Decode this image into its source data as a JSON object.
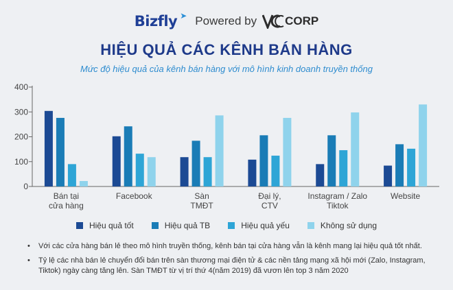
{
  "header": {
    "brand": "Bizfly",
    "powered_by": "Powered by",
    "partner": "CORP"
  },
  "chart_data": {
    "type": "bar",
    "title": "HIỆU QUẢ CÁC KÊNH BÁN HÀNG",
    "subtitle": "Mức độ hiệu quả của kênh bán hàng với mô hình kinh doanh truyền thống",
    "categories": [
      [
        "Bán tại",
        "cửa hàng"
      ],
      [
        "Facebook"
      ],
      [
        "Sàn",
        "TMĐT"
      ],
      [
        "Đại lý,",
        "CTV"
      ],
      [
        "Instagram / Zalo",
        "Tiktok"
      ],
      [
        "Website"
      ]
    ],
    "series": [
      {
        "name": "Hiệu quả tốt",
        "color": "#1c4a94",
        "values": [
          304,
          202,
          118,
          108,
          90,
          84
        ]
      },
      {
        "name": "Hiệu quả TB",
        "color": "#1a7cb6",
        "values": [
          276,
          242,
          184,
          206,
          206,
          170
        ]
      },
      {
        "name": "Hiệu quả yếu",
        "color": "#2ea5d6",
        "values": [
          90,
          132,
          118,
          124,
          146,
          152
        ]
      },
      {
        "name": "Không sử dụng",
        "color": "#8fd3ec",
        "values": [
          22,
          118,
          286,
          276,
          298,
          330
        ]
      }
    ],
    "yticks": [
      0,
      100,
      200,
      300,
      400
    ],
    "ylim": [
      0,
      400
    ],
    "grid": false,
    "legend": "bottom"
  },
  "notes": [
    "Với các cửa hàng bán lẻ theo mô hình truyền thống, kênh bán tại cửa hàng vẫn là kênh mang lại hiệu quả tốt nhất.",
    "Tỷ lệ các nhà bán lẻ chuyển đổi bán trên sàn thương mại điện tử & các nền tảng mạng xã hội mới (Zalo, Instagram, Tiktok) ngày càng tăng lên. Sàn TMĐT từ vị trí thứ 4(năm 2019) đã vươn lên top 3 năm 2020"
  ]
}
